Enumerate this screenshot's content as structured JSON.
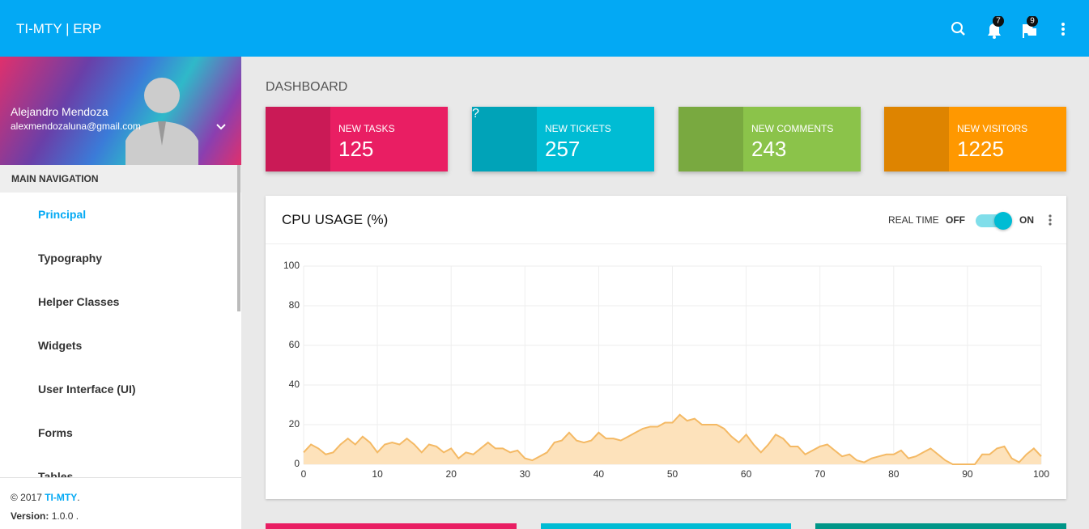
{
  "header": {
    "title": "TI-MTY | ERP",
    "badges": [
      7,
      9
    ]
  },
  "user": {
    "name": "Alejandro Mendoza",
    "email": "alexmendozaluna@gmail.com"
  },
  "navigation": {
    "title": "MAIN NAVIGATION",
    "items": [
      "Principal",
      "Typography",
      "Helper Classes",
      "Widgets",
      "User Interface (UI)",
      "Forms",
      "Tables"
    ]
  },
  "footer": {
    "copyright": "© 2017",
    "brand": "TI-MTY",
    "brand_suffix": ".",
    "version_label": "Version:",
    "version": "1.0.0",
    "version_suffix": "."
  },
  "dashboard": {
    "title": "DASHBOARD",
    "cards": [
      {
        "label": "NEW TASKS",
        "value": 125
      },
      {
        "label": "NEW TICKETS",
        "value": 257
      },
      {
        "label": "NEW COMMENTS",
        "value": 243
      },
      {
        "label": "NEW VISITORS",
        "value": 1225
      }
    ]
  },
  "chart_data": {
    "type": "area",
    "title": "CPU USAGE (%)",
    "realtime_label": "REAL TIME",
    "off_label": "OFF",
    "on_label": "ON",
    "color": "#f4b964",
    "fill": "#fde2bb",
    "x": [
      0,
      1,
      2,
      3,
      4,
      5,
      6,
      7,
      8,
      9,
      10,
      11,
      12,
      13,
      14,
      15,
      16,
      17,
      18,
      19,
      20,
      21,
      22,
      23,
      24,
      25,
      26,
      27,
      28,
      29,
      30,
      31,
      32,
      33,
      34,
      35,
      36,
      37,
      38,
      39,
      40,
      41,
      42,
      43,
      44,
      45,
      46,
      47,
      48,
      49,
      50,
      51,
      52,
      53,
      54,
      55,
      56,
      57,
      58,
      59,
      60,
      61,
      62,
      63,
      64,
      65,
      66,
      67,
      68,
      69,
      70,
      71,
      72,
      73,
      74,
      75,
      76,
      77,
      78,
      79,
      80,
      81,
      82,
      83,
      84,
      85,
      86,
      87,
      88,
      89,
      90,
      91,
      92,
      93,
      94,
      95,
      96,
      97,
      98,
      99,
      100
    ],
    "values": [
      6,
      10,
      8,
      5,
      6,
      10,
      13,
      10,
      14,
      11,
      6,
      10,
      11,
      10,
      13,
      10,
      6,
      10,
      9,
      6,
      8,
      3,
      6,
      5,
      8,
      11,
      8,
      8,
      6,
      7,
      3,
      2,
      4,
      6,
      11,
      12,
      16,
      12,
      11,
      12,
      16,
      13,
      13,
      12,
      14,
      16,
      18,
      19,
      19,
      21,
      21,
      25,
      22,
      23,
      20,
      20,
      20,
      18,
      14,
      11,
      15,
      10,
      6,
      10,
      15,
      13,
      9,
      9,
      5,
      7,
      9,
      10,
      7,
      4,
      5,
      2,
      1,
      3,
      4,
      5,
      5,
      7,
      3,
      4,
      6,
      8,
      5,
      2,
      0,
      0,
      0,
      0,
      5,
      5,
      8,
      9,
      3,
      1,
      5,
      8,
      4
    ],
    "xlim": [
      0,
      100
    ],
    "ylim": [
      0,
      100
    ],
    "xticks": [
      0,
      10,
      20,
      30,
      40,
      50,
      60,
      70,
      80,
      90,
      100
    ],
    "yticks": [
      0,
      20,
      40,
      60,
      80,
      100
    ],
    "grid": true
  }
}
